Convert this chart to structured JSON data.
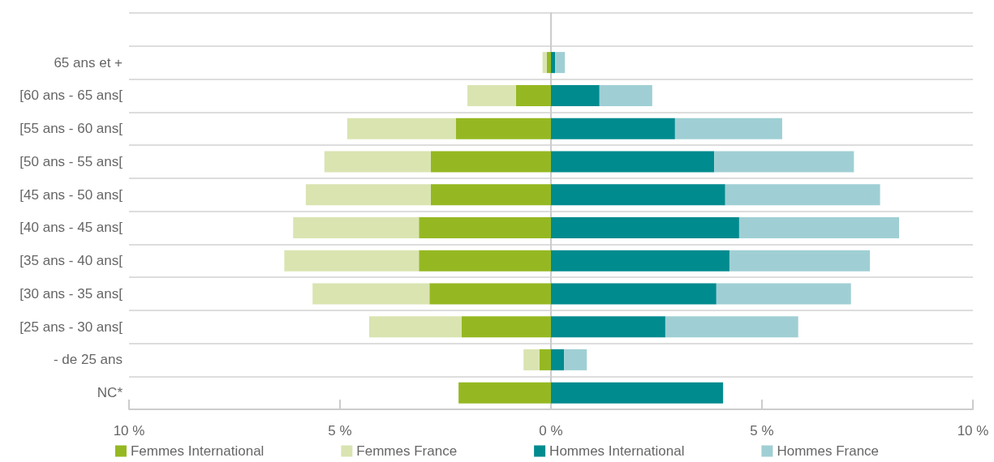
{
  "chart_data": {
    "type": "bar",
    "orientation": "horizontal",
    "stacked": true,
    "categories": [
      null,
      "65 ans et +",
      "[60 ans - 65 ans[",
      "[55 ans - 60 ans[",
      "[50 ans - 55 ans[",
      "[45 ans - 50 ans[",
      "[40 ans - 45 ans[",
      "[35 ans - 40 ans[",
      "[30 ans - 35 ans[",
      "[25 ans - 30 ans[",
      "- de 25 ans",
      "NC*"
    ],
    "series": [
      {
        "name": "Femmes International",
        "color": "#95b822",
        "values": [
          null,
          -0.1,
          -0.83,
          -2.25,
          -2.85,
          -2.85,
          -3.13,
          -3.13,
          -2.88,
          -2.12,
          -0.27,
          -2.19
        ]
      },
      {
        "name": "Femmes France",
        "color": "#d9e4b1",
        "values": [
          null,
          -0.1,
          -1.15,
          -2.58,
          -2.52,
          -2.96,
          -2.98,
          -3.19,
          -2.77,
          -2.19,
          -0.38,
          0
        ]
      },
      {
        "name": "Hommes International",
        "color": "#008b8f",
        "values": [
          null,
          0.1,
          1.15,
          2.94,
          3.87,
          4.13,
          4.46,
          4.23,
          3.92,
          2.71,
          0.31,
          4.08
        ]
      },
      {
        "name": "Hommes France",
        "color": "#9fcfd4",
        "values": [
          null,
          0.23,
          1.25,
          2.54,
          3.31,
          3.67,
          3.79,
          3.33,
          3.19,
          3.15,
          0.54,
          0
        ]
      }
    ],
    "xlim": [
      -10,
      10
    ],
    "xticks": [
      {
        "value": -10,
        "label": "10 %"
      },
      {
        "value": -5,
        "label": "5 %"
      },
      {
        "value": 0,
        "label": "0 %"
      },
      {
        "value": 5,
        "label": "5 %"
      },
      {
        "value": 10,
        "label": "10 %"
      }
    ],
    "grid": "y",
    "legend": "bottom"
  }
}
